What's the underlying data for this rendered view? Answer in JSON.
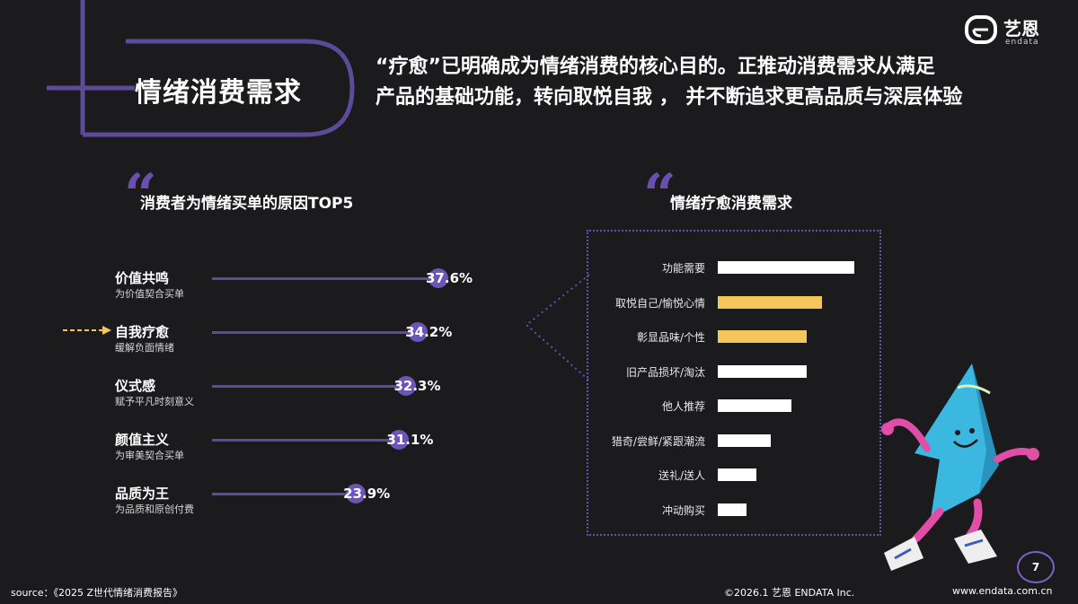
{
  "header": {
    "section_title": "情绪消费需求",
    "headline_line1": "“疗愈”已明确成为情绪消费的核心目的。正推动消费需求从满足",
    "headline_line2": "产品的基础功能，转向取悦自我 ， 并不断追求更高品质与深层体验"
  },
  "logo": {
    "cn": "艺恩",
    "en": "endata",
    "icon": "endata-logo-icon"
  },
  "left_panel": {
    "title": "消费者为情绪买单的原因TOP5",
    "items": [
      {
        "label": "价值共鸣",
        "desc": "为价值契合买单",
        "value_text": "37.6%",
        "value": 37.6
      },
      {
        "label": "自我疗愈",
        "desc": "缓解负面情绪",
        "value_text": "34.2%",
        "value": 34.2
      },
      {
        "label": "仪式感",
        "desc": "赋予平凡时刻意义",
        "value_text": "32.3%",
        "value": 32.3
      },
      {
        "label": "颜值主义",
        "desc": "为审美契合买单",
        "value_text": "31.1%",
        "value": 31.1
      },
      {
        "label": "品质为王",
        "desc": "为品质和原创付费",
        "value_text": "23.9%",
        "value": 23.9
      }
    ]
  },
  "right_panel": {
    "title": "情绪疗愈消费需求"
  },
  "chart_data": {
    "type": "bar",
    "orientation": "horizontal",
    "categories": [
      "功能需要",
      "取悦自己/愉悦心情",
      "彰显品味/个性",
      "旧产品损坏/淘汰",
      "他人推荐",
      "猎奇/尝鲜/紧跟潮流",
      "送礼/送人",
      "冲动购买"
    ],
    "values": [
      1.0,
      0.76,
      0.65,
      0.65,
      0.54,
      0.39,
      0.28,
      0.21
    ],
    "highlight_colors": [
      "#ffffff",
      "#f5c75a",
      "#f5c75a",
      "#ffffff",
      "#ffffff",
      "#ffffff",
      "#ffffff",
      "#ffffff"
    ],
    "title": "",
    "xlabel": "",
    "ylabel": "",
    "grid": false
  },
  "footer": {
    "source": "source：《2025 Z世代情绪消费报告》",
    "copyright": "©2026.1 艺恩 ENDATA Inc.",
    "website": "www.endata.com.cn",
    "page_number": "7"
  },
  "colors": {
    "accent": "#6b55b8",
    "highlight": "#f5c75a",
    "background": "#1b1b1d",
    "mascot": "#3bb8e0"
  }
}
